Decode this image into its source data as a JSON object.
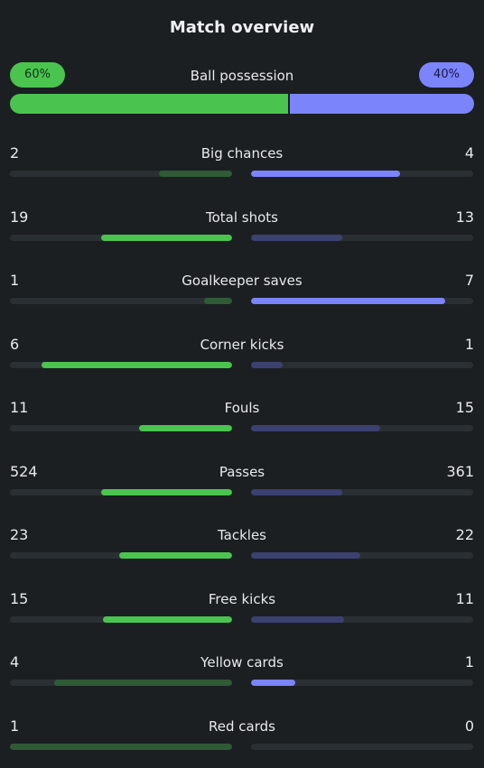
{
  "title": "Match overview",
  "possession": {
    "label": "Ball possession",
    "home": "60%",
    "away": "40%",
    "home_fraction": 0.6
  },
  "colors": {
    "home": "#4ac44f",
    "away": "#7c84fb"
  },
  "stats": [
    {
      "label": "Big chances",
      "home": "2",
      "away": "4",
      "home_fraction": 0.33,
      "away_fraction": 0.67,
      "highlight": "away"
    },
    {
      "label": "Total shots",
      "home": "19",
      "away": "13",
      "home_fraction": 0.59,
      "away_fraction": 0.41,
      "highlight": "home"
    },
    {
      "label": "Goalkeeper saves",
      "home": "1",
      "away": "7",
      "home_fraction": 0.125,
      "away_fraction": 0.875,
      "highlight": "away"
    },
    {
      "label": "Corner kicks",
      "home": "6",
      "away": "1",
      "home_fraction": 0.857,
      "away_fraction": 0.143,
      "highlight": "home"
    },
    {
      "label": "Fouls",
      "home": "11",
      "away": "15",
      "home_fraction": 0.42,
      "away_fraction": 0.58,
      "highlight": "home"
    },
    {
      "label": "Passes",
      "home": "524",
      "away": "361",
      "home_fraction": 0.59,
      "away_fraction": 0.41,
      "highlight": "home"
    },
    {
      "label": "Tackles",
      "home": "23",
      "away": "22",
      "home_fraction": 0.51,
      "away_fraction": 0.49,
      "highlight": "home"
    },
    {
      "label": "Free kicks",
      "home": "15",
      "away": "11",
      "home_fraction": 0.58,
      "away_fraction": 0.42,
      "highlight": "home"
    },
    {
      "label": "Yellow cards",
      "home": "4",
      "away": "1",
      "home_fraction": 0.8,
      "away_fraction": 0.2,
      "highlight": "away"
    },
    {
      "label": "Red cards",
      "home": "1",
      "away": "0",
      "home_fraction": 1.0,
      "away_fraction": 0.0,
      "highlight": "away"
    }
  ]
}
